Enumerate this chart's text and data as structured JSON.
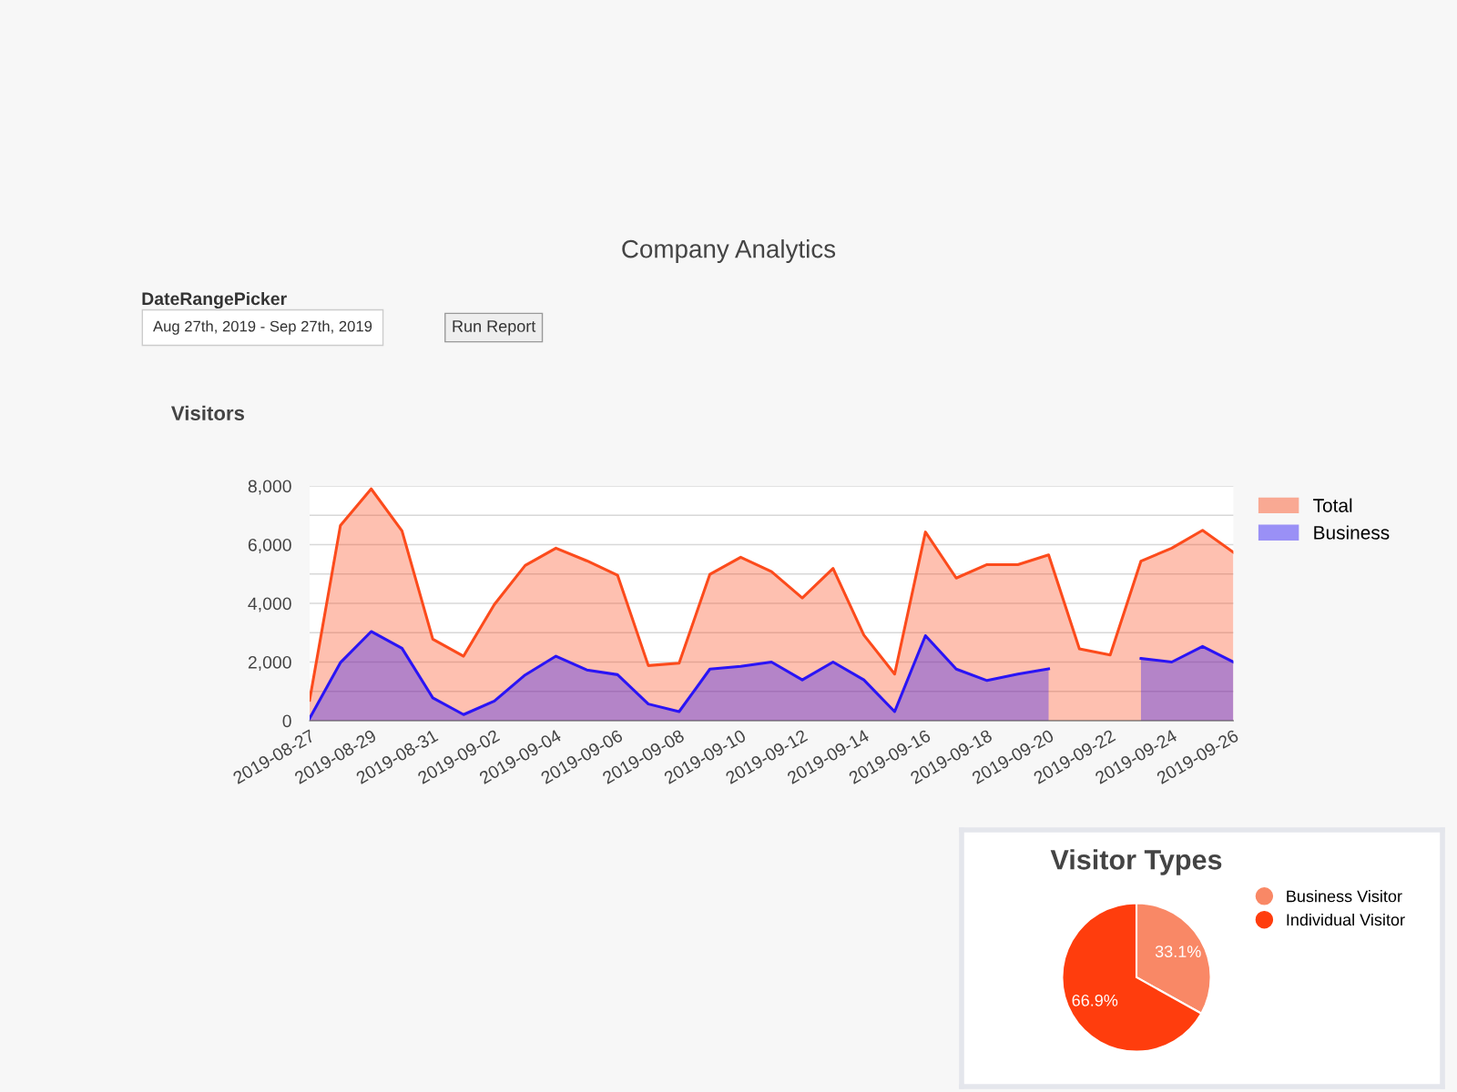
{
  "chart_data": [
    {
      "type": "area",
      "title": "Visitors",
      "annotations": [
        "Company Analytics",
        "DateRangePicker",
        "Aug 27th, 2019 - Sep 27th, 2019",
        "Run Report"
      ],
      "categories": [
        "2019-08-27",
        null,
        "2019-08-29",
        null,
        "2019-08-31",
        null,
        "2019-09-02",
        null,
        "2019-09-04",
        null,
        "2019-09-06",
        null,
        "2019-09-08",
        null,
        "2019-09-10",
        null,
        "2019-09-12",
        null,
        "2019-09-14",
        null,
        "2019-09-16",
        null,
        "2019-09-18",
        null,
        "2019-09-20",
        null,
        "2019-09-22",
        null,
        "2019-09-24",
        null,
        "2019-09-26"
      ],
      "series": [
        {
          "name": "Total",
          "color": "#fc4b1c",
          "values": [
            700,
            6650,
            7900,
            6470,
            2780,
            2200,
            3960,
            5290,
            5880,
            5450,
            4960,
            1880,
            1960,
            4990,
            5570,
            5080,
            4180,
            5190,
            2920,
            1590,
            6430,
            4860,
            5320,
            5320,
            5650,
            2450,
            2240,
            5440,
            5880,
            6490,
            5740
          ]
        },
        {
          "name": "Business",
          "color": "#2a14f5",
          "values": [
            80,
            1980,
            3040,
            2470,
            780,
            210,
            670,
            1560,
            2200,
            1730,
            1570,
            570,
            310,
            1760,
            1850,
            2000,
            1390,
            2000,
            1390,
            310,
            2900,
            1760,
            1370,
            1590,
            1770,
            null,
            null,
            2120,
            2000,
            2530,
            2000
          ]
        }
      ],
      "ylim": [
        0,
        8000
      ],
      "yticks": [
        0,
        {
          "value": 1000,
          "label": null
        },
        {
          "value": 2000,
          "label": "2,000"
        },
        {
          "value": 3000,
          "label": null
        },
        {
          "value": 4000,
          "label": "4,000"
        },
        {
          "value": 5000,
          "label": null
        },
        {
          "value": 6000,
          "label": "6,000"
        },
        {
          "value": 7000,
          "label": null
        },
        {
          "value": 8000,
          "label": "8,000"
        }
      ],
      "grid": "y",
      "legend": "right"
    },
    {
      "type": "pie",
      "title": "Visitor Types",
      "categories": [
        "Business Visitor",
        "Individual Visitor"
      ],
      "values": [
        33.1,
        66.9
      ],
      "colors": [
        "#f98866",
        "#ff3d0d"
      ],
      "value_labels": [
        "33.1%",
        "66.9%"
      ],
      "legend": "top right"
    }
  ]
}
